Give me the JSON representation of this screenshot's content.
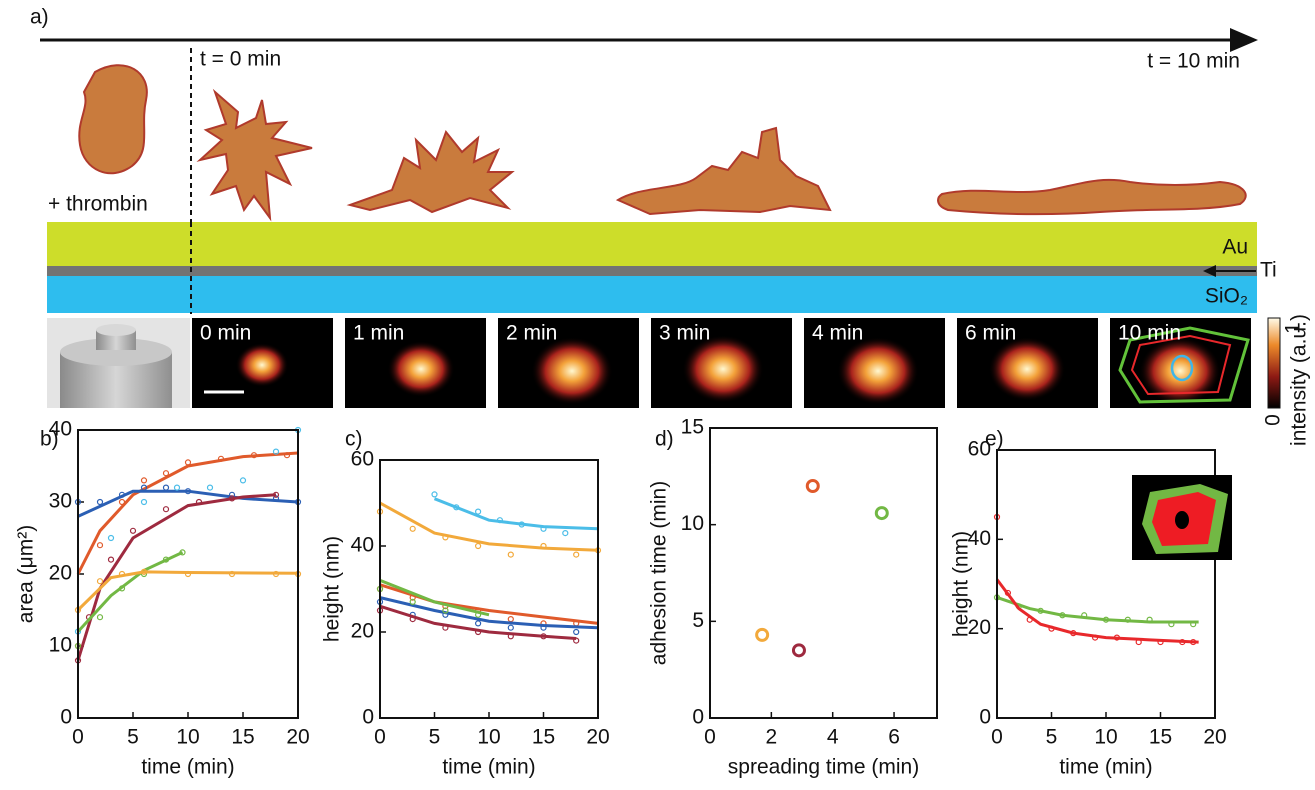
{
  "figure": {
    "panel_label": "a)",
    "t_start": "t = 0 min",
    "t_end": "t = 10 min",
    "treatment": "+ thrombin",
    "layers": [
      "Au",
      "Ti",
      "SiO₂"
    ],
    "frames": [
      "0 min",
      "1 min",
      "2 min",
      "3 min",
      "4 min",
      "6 min",
      "10 min"
    ],
    "colorbar": {
      "label": "intensity (a.u.)",
      "ticks": [
        0,
        1
      ]
    }
  },
  "chart_data": [
    {
      "type": "scatter",
      "label": "b)",
      "xlabel": "time (min)",
      "ylabel": "area (μm²)",
      "xlim": [
        0,
        20
      ],
      "ylim": [
        0,
        40
      ],
      "xticks": [
        0,
        5,
        10,
        15,
        20
      ],
      "yticks": [
        0,
        10,
        20,
        30,
        40
      ],
      "series": [
        {
          "color": "#e05a2b",
          "x": [
            0,
            2,
            4,
            6,
            8,
            10,
            13,
            16,
            19
          ],
          "values": [
            10,
            24,
            30,
            33,
            34,
            35.5,
            36,
            36.5,
            36.5
          ],
          "fit_x": [
            0,
            2,
            5,
            10,
            15,
            20
          ],
          "fit_values": [
            20,
            26,
            31,
            35,
            36.3,
            36.8
          ]
        },
        {
          "color": "#2b5fb4",
          "x": [
            0,
            2,
            4,
            6,
            8,
            10,
            14,
            18,
            20
          ],
          "values": [
            30,
            30,
            31,
            32,
            32,
            31.5,
            31,
            30.5,
            30
          ],
          "fit_x": [
            0,
            5,
            10,
            15,
            20
          ],
          "fit_values": [
            28,
            31.5,
            31.5,
            30.5,
            30
          ]
        },
        {
          "color": "#4bbde8",
          "x": [
            0,
            3,
            6,
            9,
            12,
            15,
            18,
            20
          ],
          "values": [
            12,
            25,
            30,
            32,
            32,
            33,
            37,
            40
          ]
        },
        {
          "color": "#9e2a3f",
          "x": [
            0,
            1,
            3,
            5,
            8,
            11,
            14,
            18
          ],
          "values": [
            8,
            14,
            22,
            26,
            29,
            30,
            30.5,
            31
          ],
          "fit_x": [
            0,
            2,
            5,
            10,
            15,
            18
          ],
          "fit_values": [
            8,
            18,
            25,
            29.5,
            30.7,
            31
          ]
        },
        {
          "color": "#72b844",
          "x": [
            0,
            2,
            4,
            6,
            8,
            9.5
          ],
          "values": [
            10,
            14,
            18,
            20,
            22,
            23
          ],
          "fit_x": [
            0,
            3,
            6,
            9.5
          ],
          "fit_values": [
            12,
            17,
            20.5,
            23
          ]
        },
        {
          "color": "#f2a93b",
          "x": [
            0,
            2,
            4,
            6,
            10,
            14,
            18,
            20
          ],
          "values": [
            15,
            19,
            20,
            20.3,
            20,
            20,
            20,
            20
          ],
          "fit_x": [
            0,
            3,
            6,
            10,
            20
          ],
          "fit_values": [
            15,
            19.5,
            20.3,
            20.2,
            20.1
          ]
        }
      ]
    },
    {
      "type": "scatter",
      "label": "c)",
      "xlabel": "time (min)",
      "ylabel": "height (nm)",
      "xlim": [
        0,
        20
      ],
      "ylim": [
        0,
        60
      ],
      "xticks": [
        0,
        5,
        10,
        15,
        20
      ],
      "yticks": [
        0,
        20,
        40,
        60
      ],
      "series": [
        {
          "color": "#4bbde8",
          "x": [
            5,
            7,
            9,
            11,
            13,
            15,
            17
          ],
          "values": [
            52,
            49,
            48,
            46,
            45,
            44,
            43
          ],
          "fit_x": [
            5,
            10,
            15,
            20
          ],
          "fit_values": [
            51,
            46,
            44.5,
            44
          ]
        },
        {
          "color": "#f2a93b",
          "x": [
            0,
            3,
            6,
            9,
            12,
            15,
            18,
            20
          ],
          "values": [
            48,
            44,
            42,
            40,
            38,
            40,
            38,
            39
          ],
          "fit_x": [
            0,
            5,
            10,
            15,
            20
          ],
          "fit_values": [
            50,
            43,
            40.5,
            39.5,
            39
          ]
        },
        {
          "color": "#e05a2b",
          "x": [
            0,
            3,
            6,
            9,
            12,
            15,
            18
          ],
          "values": [
            30,
            28,
            26,
            25,
            23,
            22,
            22
          ],
          "fit_x": [
            0,
            5,
            10,
            15,
            20
          ],
          "fit_values": [
            31,
            27,
            25,
            23.5,
            22
          ]
        },
        {
          "color": "#2b5fb4",
          "x": [
            0,
            3,
            6,
            9,
            12,
            15,
            18
          ],
          "values": [
            27,
            24,
            24,
            22,
            21,
            21,
            20
          ],
          "fit_x": [
            0,
            5,
            10,
            15,
            20
          ],
          "fit_values": [
            28,
            25,
            22.5,
            21.5,
            21
          ]
        },
        {
          "color": "#9e2a3f",
          "x": [
            0,
            3,
            6,
            9,
            12,
            15,
            18
          ],
          "values": [
            25,
            23,
            21,
            20,
            19,
            19,
            18
          ],
          "fit_x": [
            0,
            5,
            10,
            15,
            18
          ],
          "fit_values": [
            26,
            22,
            20,
            19,
            18.5
          ]
        },
        {
          "color": "#72b844",
          "x": [
            0,
            3,
            6,
            9
          ],
          "values": [
            30,
            27,
            25,
            24
          ],
          "fit_x": [
            0,
            5,
            10
          ],
          "fit_values": [
            32,
            27,
            24
          ]
        }
      ]
    },
    {
      "type": "scatter",
      "label": "d)",
      "xlabel": "spreading time (min)",
      "ylabel": "adhesion time (min)",
      "xlim": [
        0,
        7.4
      ],
      "ylim": [
        0,
        15
      ],
      "xticks": [
        0,
        2,
        4,
        6
      ],
      "yticks": [
        0,
        5,
        10,
        15
      ],
      "marker": "large",
      "series": [
        {
          "color": "#f2a93b",
          "x": [
            1.7
          ],
          "values": [
            4.3
          ]
        },
        {
          "color": "#9e2a3f",
          "x": [
            2.9
          ],
          "values": [
            3.5
          ]
        },
        {
          "color": "#e05a2b",
          "x": [
            3.35
          ],
          "values": [
            12
          ]
        },
        {
          "color": "#72b844",
          "x": [
            5.6
          ],
          "values": [
            10.6
          ]
        }
      ]
    },
    {
      "type": "scatter",
      "label": "e)",
      "xlabel": "time (min)",
      "ylabel": "height (nm)",
      "xlim": [
        0,
        20
      ],
      "ylim": [
        0,
        60
      ],
      "xticks": [
        0,
        5,
        10,
        15,
        20
      ],
      "yticks": [
        0,
        20,
        40,
        60
      ],
      "series": [
        {
          "color": "#72b844",
          "x": [
            0,
            2,
            4,
            6,
            8,
            10,
            12,
            14,
            16,
            18
          ],
          "values": [
            27,
            25,
            24,
            23,
            23,
            22,
            22,
            22,
            21,
            21
          ],
          "fit_x": [
            0,
            3,
            6,
            10,
            14,
            18.5
          ],
          "fit_values": [
            27,
            24.5,
            23,
            22,
            21.5,
            21.5
          ]
        },
        {
          "color": "#e8282b",
          "x": [
            0,
            1,
            3,
            5,
            7,
            9,
            11,
            13,
            15,
            17,
            18
          ],
          "values": [
            45,
            28,
            22,
            20,
            19,
            18,
            18,
            17,
            17,
            17,
            17
          ],
          "fit_x": [
            0,
            2,
            4,
            7,
            10,
            14,
            18.5
          ],
          "fit_values": [
            31,
            24.5,
            21,
            19,
            18,
            17.5,
            17
          ]
        }
      ]
    }
  ]
}
